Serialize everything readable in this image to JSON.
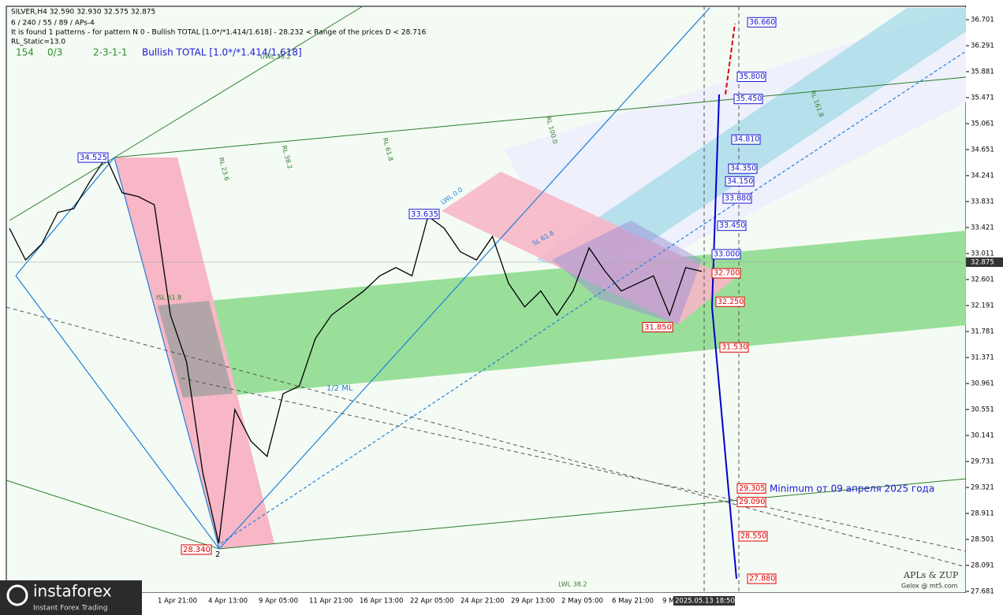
{
  "chart_data": {
    "type": "line",
    "title": "SILVER,H4  32.590 32.930 32.575 32.875",
    "header_lines": [
      "6 / 240 / 55 / 89 / APs-4",
      "It is found 1 patterns  -  for pattern N 0 - Bullish TOTAL [1.0*/*1.414/1.618] - 28.232 < Range of the prices D < 28.716",
      "RL_Static=13.0"
    ],
    "status": [
      "154",
      "0/3",
      "2-3-1-1",
      "Bullish TOTAL [1.0*/*1.414/1.618]"
    ],
    "ylim": [
      27.681,
      36.701
    ],
    "yticks": [
      36.701,
      36.291,
      35.881,
      35.471,
      35.061,
      34.651,
      34.241,
      33.831,
      33.421,
      33.011,
      32.601,
      32.191,
      31.781,
      31.371,
      30.961,
      30.551,
      30.141,
      29.731,
      29.321,
      28.911,
      28.501,
      28.091,
      27.681
    ],
    "current_price": 32.875,
    "x_labels": [
      "1 Apr 21:00",
      "4 Apr 13:00",
      "9 Apr 05:00",
      "11 Apr 21:00",
      "16 Apr 13:00",
      "22 Apr 05:00",
      "24 Apr 21:00",
      "29 Apr 13:00",
      "2 May 05:00",
      "6 May 21:00",
      "9 M",
      "2025.05.13 18:50"
    ],
    "color": "#000000",
    "values": [
      33.41,
      32.91,
      33.16,
      33.66,
      33.72,
      34.15,
      34.53,
      33.97,
      33.91,
      33.78,
      32.04,
      31.3,
      29.56,
      28.44,
      30.55,
      30.05,
      29.81,
      30.8,
      30.92,
      31.67,
      32.04,
      32.23,
      32.42,
      32.66,
      32.79,
      32.66,
      33.6,
      33.41,
      33.04,
      32.91,
      33.28,
      32.54,
      32.17,
      32.42,
      32.04,
      32.42,
      33.1,
      32.73,
      32.42,
      32.54,
      32.66,
      32.04,
      32.79,
      32.73
    ],
    "levels": [
      {
        "value": 36.66,
        "label": "36.660"
      },
      {
        "value": 35.8,
        "label": "35.800"
      },
      {
        "value": 35.45,
        "label": "35.450"
      },
      {
        "value": 34.81,
        "label": "34.810"
      },
      {
        "value": 34.35,
        "label": "34.350"
      },
      {
        "value": 34.15,
        "label": "34.150"
      },
      {
        "value": 33.88,
        "label": "33.880"
      },
      {
        "value": 33.45,
        "label": "33.450"
      },
      {
        "value": 33.0,
        "label": "33.000"
      },
      {
        "value": 32.7,
        "label": "32.700"
      },
      {
        "value": 32.25,
        "label": "32.250"
      },
      {
        "value": 31.53,
        "label": "31.530"
      },
      29.305,
      {
        "value": 29.09,
        "label": "29.090"
      },
      {
        "value": 28.55,
        "label": "28.550"
      },
      {
        "value": 27.88,
        "label": "27.880"
      }
    ],
    "pivots": [
      34.525,
      33.635,
      {
        "value": 31.85,
        "label": "31.850"
      },
      {
        "value": 28.34,
        "label": "28.340"
      }
    ],
    "annotations": [
      "Minimum от 09 апреля 2025 года",
      "1/2 ML",
      "2",
      "LWL 38.2",
      "UWL 38.2",
      "RL 23.6",
      "RL 38.2",
      "RL 61.8",
      "RL 100.0",
      "ISL 61.8",
      "SL 61.8",
      "LWL 0.0",
      "RL 161.8"
    ],
    "credits": [
      "APLs & ZUP",
      "Gelox @ mt5.com"
    ],
    "logo": [
      "instaforex",
      "Instant Forex Trading"
    ]
  }
}
